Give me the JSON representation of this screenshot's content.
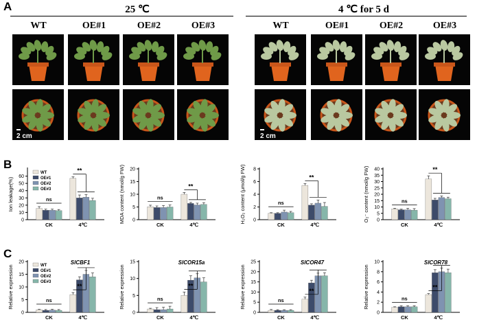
{
  "panel_a": {
    "letter": "A",
    "groups": [
      {
        "condition": "25 ℃",
        "genotypes": [
          "WT",
          "OE#1",
          "OE#2",
          "OE#3"
        ],
        "scale_label": "2 cm"
      },
      {
        "condition": "4 ℃ for 5 d",
        "genotypes": [
          "WT",
          "OE#1",
          "OE#2",
          "OE#3"
        ],
        "scale_label": "2 cm"
      }
    ]
  },
  "panel_b": {
    "letter": "B"
  },
  "panel_c": {
    "letter": "C"
  },
  "colors": {
    "WT": "#ece6dc",
    "OE#1": "#3d4b6a",
    "OE#2": "#7f93b1",
    "OE#3": "#86b6aa"
  },
  "chart_data": [
    {
      "type": "bar",
      "categories": [
        "CK",
        "4℃"
      ],
      "series": [
        {
          "name": "WT",
          "values": [
            15.5,
            57
          ],
          "errors": [
            2.5,
            2
          ]
        },
        {
          "name": "OE#1",
          "values": [
            13,
            30
          ],
          "errors": [
            1.5,
            4
          ]
        },
        {
          "name": "OE#2",
          "values": [
            13,
            31
          ],
          "errors": [
            1.5,
            3.5
          ]
        },
        {
          "name": "OE#3",
          "values": [
            12.5,
            26.5
          ],
          "errors": [
            1.5,
            3
          ]
        }
      ],
      "ylabel": "Ion leakage(%)",
      "yticks": [
        0,
        10,
        20,
        30,
        40,
        50,
        60
      ],
      "ylim": [
        0,
        70
      ],
      "legend": "top-left",
      "annotations": [
        "ns",
        "**"
      ]
    },
    {
      "type": "bar",
      "categories": [
        "CK",
        "4℃"
      ],
      "series": [
        {
          "name": "WT",
          "values": [
            5.1,
            10.0
          ],
          "errors": [
            0.6,
            0.7
          ]
        },
        {
          "name": "OE#1",
          "values": [
            4.8,
            6.4
          ],
          "errors": [
            0.6,
            0.4
          ]
        },
        {
          "name": "OE#2",
          "values": [
            4.8,
            5.8
          ],
          "errors": [
            0.8,
            0.7
          ]
        },
        {
          "name": "OE#3",
          "values": [
            5.0,
            6.0
          ],
          "errors": [
            0.8,
            0.7
          ]
        }
      ],
      "ylabel": "MDA content (nmol/g FW)",
      "yticks": [
        0,
        5,
        10,
        15,
        20
      ],
      "ylim": [
        0,
        20
      ],
      "annotations": [
        "ns",
        "**"
      ]
    },
    {
      "type": "bar",
      "categories": [
        "CK",
        "4℃"
      ],
      "series": [
        {
          "name": "WT",
          "values": [
            1.0,
            5.4
          ],
          "errors": [
            0.1,
            0.3
          ]
        },
        {
          "name": "OE#1",
          "values": [
            1.0,
            2.3
          ],
          "errors": [
            0.1,
            0.2
          ]
        },
        {
          "name": "OE#2",
          "values": [
            1.2,
            2.6
          ],
          "errors": [
            0.3,
            0.5
          ]
        },
        {
          "name": "OE#3",
          "values": [
            1.1,
            2.1
          ],
          "errors": [
            0.2,
            0.6
          ]
        }
      ],
      "ylabel": "H₂O₂ content (μmol/g FW)",
      "yticks": [
        0,
        2,
        4,
        6,
        8
      ],
      "ylim": [
        0,
        8
      ],
      "annotations": [
        "ns",
        "**"
      ]
    },
    {
      "type": "bar",
      "categories": [
        "CK",
        "4℃"
      ],
      "series": [
        {
          "name": "WT",
          "values": [
            8.5,
            32
          ],
          "errors": [
            0.5,
            2.5
          ]
        },
        {
          "name": "OE#1",
          "values": [
            7.8,
            15.5
          ],
          "errors": [
            0.5,
            1.3
          ]
        },
        {
          "name": "OE#2",
          "values": [
            7.8,
            17.5
          ],
          "errors": [
            1.2,
            1.2
          ]
        },
        {
          "name": "OE#3",
          "values": [
            7.5,
            16.5
          ],
          "errors": [
            1.2,
            1.2
          ]
        }
      ],
      "ylabel": "O₂⁻ content (nmol/g FW)",
      "yticks": [
        0,
        5,
        10,
        15,
        20,
        25,
        30,
        35,
        40
      ],
      "ylim": [
        0,
        40
      ],
      "annotations": [
        "ns",
        "**"
      ]
    },
    {
      "type": "bar",
      "title": "SlCBF1",
      "categories": [
        "CK",
        "4℃"
      ],
      "series": [
        {
          "name": "WT",
          "values": [
            1.0,
            7.0
          ],
          "errors": [
            0.2,
            0.8
          ]
        },
        {
          "name": "OE#1",
          "values": [
            0.8,
            12.8
          ],
          "errors": [
            0.3,
            1.2
          ]
        },
        {
          "name": "OE#2",
          "values": [
            0.9,
            15.0
          ],
          "errors": [
            0.3,
            1.5
          ]
        },
        {
          "name": "OE#3",
          "values": [
            0.8,
            14.0
          ],
          "errors": [
            0.3,
            1.5
          ]
        }
      ],
      "ylabel": "Relative expression",
      "yticks": [
        0,
        5,
        10,
        15,
        20
      ],
      "ylim": [
        0,
        20
      ],
      "legend": "top-left",
      "annotations": [
        "ns",
        "**"
      ]
    },
    {
      "type": "bar",
      "title": "SlCOR15a",
      "categories": [
        "CK",
        "4℃"
      ],
      "series": [
        {
          "name": "WT",
          "values": [
            1.0,
            5.0
          ],
          "errors": [
            0.2,
            1.0
          ]
        },
        {
          "name": "OE#1",
          "values": [
            0.8,
            9.5
          ],
          "errors": [
            0.6,
            1.3
          ]
        },
        {
          "name": "OE#2",
          "values": [
            0.8,
            10.2
          ],
          "errors": [
            0.7,
            1.2
          ]
        },
        {
          "name": "OE#3",
          "values": [
            1.0,
            9.0
          ],
          "errors": [
            0.8,
            1.2
          ]
        }
      ],
      "ylabel": "Relative expression",
      "yticks": [
        0,
        5,
        10,
        15
      ],
      "ylim": [
        0,
        15
      ],
      "annotations": [
        "ns",
        "**"
      ]
    },
    {
      "type": "bar",
      "title": "SlCOR47",
      "categories": [
        "CK",
        "4℃"
      ],
      "series": [
        {
          "name": "WT",
          "values": [
            1.0,
            6.5
          ],
          "errors": [
            0.4,
            1.0
          ]
        },
        {
          "name": "OE#1",
          "values": [
            1.0,
            14.5
          ],
          "errors": [
            0.3,
            1.3
          ]
        },
        {
          "name": "OE#2",
          "values": [
            1.0,
            18.0
          ],
          "errors": [
            0.3,
            1.3
          ]
        },
        {
          "name": "OE#3",
          "values": [
            1.0,
            18.0
          ],
          "errors": [
            0.3,
            1.5
          ]
        }
      ],
      "ylabel": "Relative expression",
      "yticks": [
        0,
        5,
        10,
        15,
        20,
        25
      ],
      "ylim": [
        0,
        25
      ],
      "annotations": [
        "ns",
        "**"
      ]
    },
    {
      "type": "bar",
      "title": "SlCOR78",
      "categories": [
        "CK",
        "4℃"
      ],
      "series": [
        {
          "name": "WT",
          "values": [
            1.0,
            3.5
          ],
          "errors": [
            0.1,
            0.2
          ]
        },
        {
          "name": "OE#1",
          "values": [
            1.1,
            7.8
          ],
          "errors": [
            0.2,
            0.6
          ]
        },
        {
          "name": "OE#2",
          "values": [
            1.1,
            8.0
          ],
          "errors": [
            0.2,
            0.7
          ]
        },
        {
          "name": "OE#3",
          "values": [
            1.1,
            7.8
          ],
          "errors": [
            0.2,
            0.7
          ]
        }
      ],
      "ylabel": "Relative expression",
      "yticks": [
        0,
        2,
        4,
        6,
        8,
        10
      ],
      "ylim": [
        0,
        10
      ],
      "annotations": [
        "ns",
        "**"
      ]
    }
  ]
}
